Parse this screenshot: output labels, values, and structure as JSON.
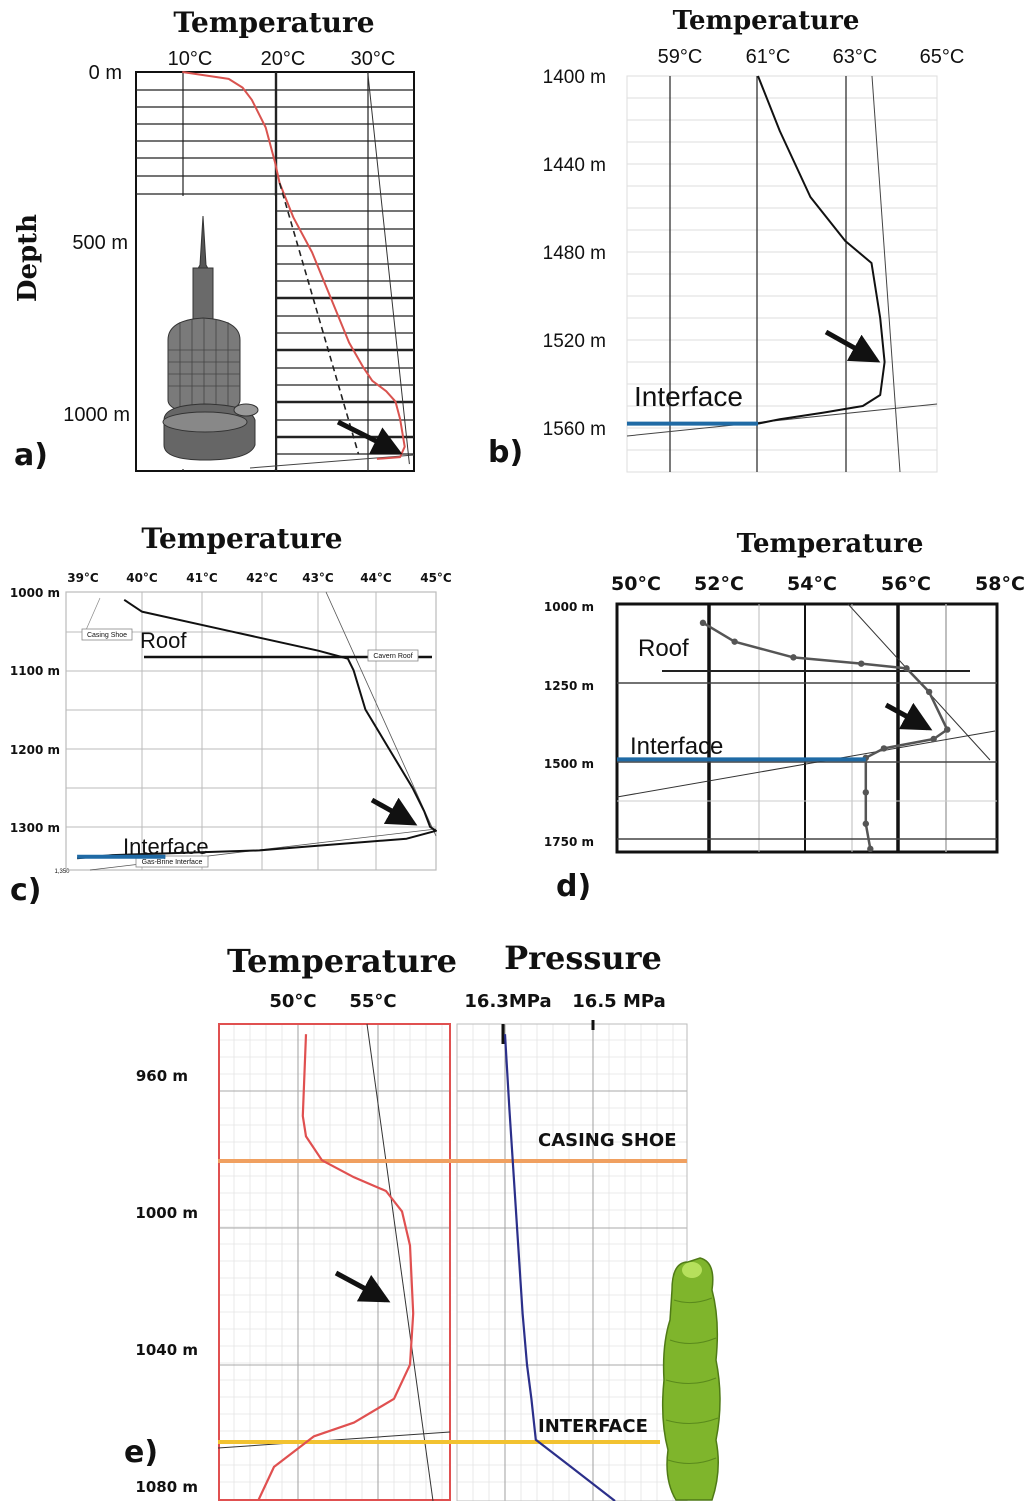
{
  "chart_data": [
    {
      "panel": "a)",
      "type": "line",
      "title": "Temperature",
      "ylabel": "Depth",
      "x_ticks": [
        "10°C",
        "20°C",
        "30°C"
      ],
      "y_ticks": [
        "0 m",
        "500 m",
        "1000 m"
      ],
      "xlim": [
        5,
        35
      ],
      "ylim": [
        0,
        1150
      ],
      "series": [
        {
          "color": "#d9534f",
          "x": [
            10,
            15,
            16.5,
            17.5,
            19,
            20,
            20.5,
            22,
            24,
            26,
            28,
            29.5,
            30.5,
            32,
            33,
            33.5,
            34,
            33.5,
            31
          ],
          "y": [
            0,
            20,
            45,
            80,
            160,
            260,
            320,
            420,
            520,
            650,
            780,
            850,
            890,
            920,
            950,
            1000,
            1080,
            1110,
            1115
          ]
        },
        {
          "color": "#222222",
          "style": "dashed",
          "x": [
            20.5,
            29
          ],
          "y": [
            320,
            1100
          ]
        },
        {
          "color": "#333333",
          "style": "thin",
          "x": [
            30,
            34.5
          ],
          "y": [
            0,
            1130
          ]
        }
      ],
      "annotations": [
        "arrow pointing to maximum temperature near 1100 m"
      ]
    },
    {
      "panel": "b)",
      "type": "line",
      "title": "Temperature",
      "x_ticks": [
        "59°C",
        "61°C",
        "63°C",
        "65°C"
      ],
      "y_ticks": [
        "1400 m",
        "1440 m",
        "1480 m",
        "1520 m",
        "1560 m"
      ],
      "xlim": [
        58,
        66
      ],
      "ylim": [
        1400,
        1580
      ],
      "series": [
        {
          "color": "#111111",
          "x": [
            61.0,
            61.5,
            62.2,
            63.0,
            63.6,
            63.8,
            63.9,
            63.8,
            63.4,
            62.5,
            61.5,
            61.0
          ],
          "y": [
            1400,
            1425,
            1455,
            1475,
            1485,
            1510,
            1530,
            1545,
            1550,
            1553,
            1556,
            1558
          ]
        },
        {
          "color": "#1f6aa5",
          "label": "Interface",
          "x": [
            58.0,
            61.0
          ],
          "y": [
            1558,
            1558
          ]
        }
      ],
      "annotations": [
        "Interface"
      ]
    },
    {
      "panel": "c)",
      "type": "line",
      "title": "Temperature",
      "x_ticks": [
        "39°C",
        "40°C",
        "41°C",
        "42°C",
        "43°C",
        "44°C",
        "45°C"
      ],
      "y_ticks": [
        "1000 m",
        "1100 m",
        "1200 m",
        "1300 m"
      ],
      "xlim": [
        38.6,
        45.2
      ],
      "ylim": [
        1000,
        1350
      ],
      "series": [
        {
          "color": "#111111",
          "x": [
            39.7,
            40.0,
            41.5,
            43.0,
            43.5,
            43.6,
            43.8,
            44.2,
            44.6,
            44.8,
            44.9,
            45.0,
            44.5,
            42.0,
            39.5,
            38.9
          ],
          "y": [
            1010,
            1025,
            1050,
            1075,
            1085,
            1100,
            1150,
            1200,
            1250,
            1280,
            1300,
            1305,
            1315,
            1330,
            1336,
            1340
          ]
        },
        {
          "color": "#1f6aa5",
          "label": "Interface",
          "x": [
            38.9,
            40.4
          ],
          "y": [
            1338,
            1338
          ]
        }
      ],
      "annotations": [
        "Casing Shoe",
        "Roof",
        "Cavern Roof",
        "Interface",
        "Gas-Brine Interface",
        "1,350"
      ]
    },
    {
      "panel": "d)",
      "type": "line",
      "title": "Temperature",
      "x_ticks": [
        "50°C",
        "52°C",
        "54°C",
        "56°C",
        "58°C"
      ],
      "y_ticks": [
        "1000 m",
        "1250 m",
        "1500 m",
        "1750 m"
      ],
      "xlim": [
        49.6,
        58.0
      ],
      "ylim": [
        1000,
        1780
      ],
      "series": [
        {
          "color": "#555555",
          "x": [
            51.5,
            52.2,
            53.5,
            55.0,
            56.0,
            56.5,
            56.9,
            56.6,
            55.5,
            55.1,
            55.1,
            55.1,
            55.2
          ],
          "y": [
            1060,
            1120,
            1170,
            1190,
            1205,
            1280,
            1400,
            1430,
            1460,
            1490,
            1600,
            1700,
            1780
          ]
        },
        {
          "color": "#1f6aa5",
          "label": "Interface",
          "x": [
            49.6,
            55.1
          ],
          "y": [
            1495,
            1495
          ]
        }
      ],
      "annotations": [
        "Roof",
        "Interface"
      ]
    },
    {
      "panel": "e)",
      "type": "line",
      "title": "Temperature",
      "title2": "Pressure",
      "x_ticks": [
        "50°C",
        "55°C"
      ],
      "x2_ticks": [
        "16.3MPa",
        "16.5 MPa"
      ],
      "y_ticks": [
        "960 m",
        "1000 m",
        "1040 m",
        "1080 m"
      ],
      "ylim": [
        945,
        1085
      ],
      "series": [
        {
          "color": "#e05050",
          "x": [
            50.5,
            50.3,
            50.5,
            51.5,
            53.5,
            55.5,
            56.5,
            57.0,
            57.2,
            57.0,
            56.0,
            53.5,
            51.0,
            48.5,
            47.5
          ],
          "y": [
            948,
            972,
            978,
            985,
            990,
            994,
            1000,
            1010,
            1030,
            1045,
            1055,
            1062,
            1066,
            1075,
            1085
          ]
        },
        {
          "color": "#2b2f8a",
          "x": [
            16.3,
            16.31,
            16.32,
            16.33,
            16.34,
            16.35,
            16.36,
            16.37,
            16.45,
            16.55
          ],
          "y": [
            948,
            970,
            990,
            1010,
            1030,
            1045,
            1055,
            1067,
            1075,
            1085
          ]
        }
      ],
      "annotations": [
        "CASING SHOE",
        "INTERFACE"
      ]
    }
  ],
  "labels": {
    "a": {
      "title": "Temperature",
      "panel": "a)",
      "ylabel": "Depth",
      "x": [
        "10°C",
        "20°C",
        "30°C"
      ],
      "y": [
        "0 m",
        "500 m",
        "1000 m"
      ]
    },
    "b": {
      "title": "Temperature",
      "panel": "b)",
      "x": [
        "59°C",
        "61°C",
        "63°C",
        "65°C"
      ],
      "y": [
        "1400 m",
        "1440 m",
        "1480 m",
        "1520 m",
        "1560 m"
      ],
      "interface": "Interface"
    },
    "c": {
      "title": "Temperature",
      "panel": "c)",
      "x": [
        "39°C",
        "40°C",
        "41°C",
        "42°C",
        "43°C",
        "44°C",
        "45°C"
      ],
      "y": [
        "1000 m",
        "1100 m",
        "1200 m",
        "1300 m"
      ],
      "y_small": "1,350",
      "roof": "Roof",
      "casing": "Casing Shoe",
      "cavern": "Cavern Roof",
      "interface": "Interface",
      "gasbrine": "Gas-Brine Interface"
    },
    "d": {
      "title": "Temperature",
      "panel": "d)",
      "x": [
        "50°C",
        "52°C",
        "54°C",
        "56°C",
        "58°C"
      ],
      "y": [
        "1000 m",
        "1250 m",
        "1500 m",
        "1750 m"
      ],
      "roof": "Roof",
      "interface": "Interface"
    },
    "e": {
      "title": "Temperature",
      "title2": "Pressure",
      "panel": "e)",
      "x": [
        "50°C",
        "55°C"
      ],
      "x2": [
        "16.3MPa",
        "16.5 MPa"
      ],
      "y": [
        "960 m",
        "1000 m",
        "1040 m",
        "1080 m"
      ],
      "casing": "CASING SHOE",
      "interface": "INTERFACE"
    }
  },
  "colors": {
    "temp_red": "#e05050",
    "pressure_blue": "#2b2f8a",
    "interface_blue": "#1f6aa5",
    "casing_orange": "#f0a060",
    "interface_yellow": "#f2c230",
    "cavern_green": "#7fb52c"
  }
}
